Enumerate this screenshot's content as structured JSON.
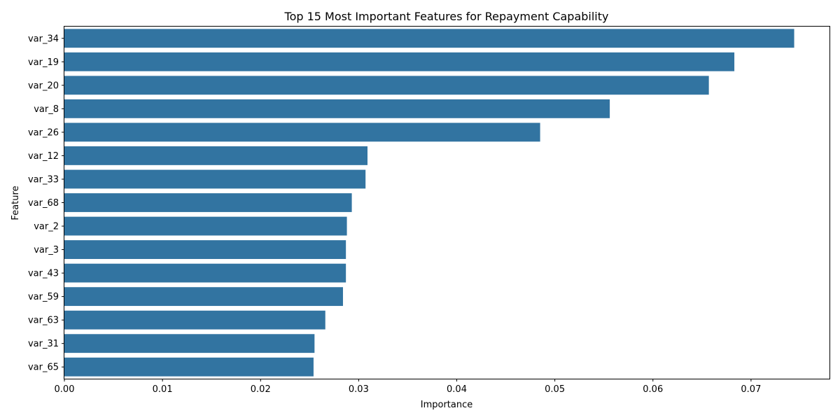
{
  "chart_data": {
    "type": "bar",
    "orientation": "horizontal",
    "title": "Top 15 Most Important Features for Repayment Capability",
    "xlabel": "Importance",
    "ylabel": "Feature",
    "categories": [
      "var_34",
      "var_19",
      "var_20",
      "var_8",
      "var_26",
      "var_12",
      "var_33",
      "var_68",
      "var_2",
      "var_3",
      "var_43",
      "var_59",
      "var_63",
      "var_31",
      "var_65"
    ],
    "values": [
      0.0744,
      0.0683,
      0.0657,
      0.0556,
      0.0485,
      0.0309,
      0.0307,
      0.0293,
      0.0288,
      0.0287,
      0.0287,
      0.0284,
      0.0266,
      0.0255,
      0.0254
    ],
    "xlim": [
      0,
      0.078
    ],
    "xticks": [
      "0.00",
      "0.01",
      "0.02",
      "0.03",
      "0.04",
      "0.05",
      "0.06",
      "0.07"
    ],
    "grid": false,
    "colors": {
      "bar": "#3274a1",
      "axis": "#000000"
    }
  }
}
